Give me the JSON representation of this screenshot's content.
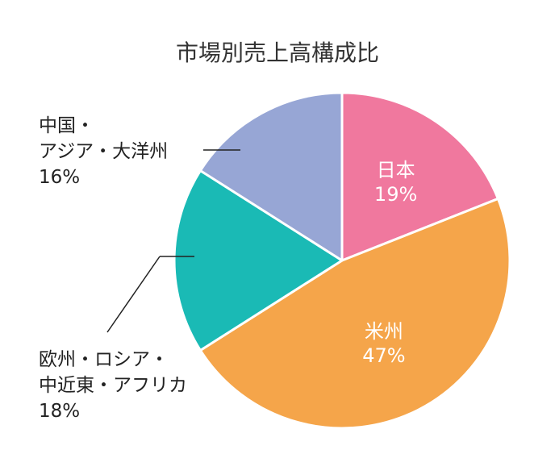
{
  "chart_data": {
    "type": "pie",
    "title": "市場別売上高構成比",
    "slices": [
      {
        "label": "日本",
        "value": 19,
        "value_label": "19%",
        "color": "#f0789e",
        "label_position": "inside"
      },
      {
        "label": "米州",
        "value": 47,
        "value_label": "47%",
        "color": "#f5a54a",
        "label_position": "inside"
      },
      {
        "label_lines": [
          "欧州・ロシア・",
          "中近東・アフリカ"
        ],
        "value": 18,
        "value_label": "18%",
        "color": "#1abab5",
        "label_position": "outside-left"
      },
      {
        "label_lines": [
          "中国・",
          "アジア・大洋州"
        ],
        "value": 16,
        "value_label": "16%",
        "color": "#97a6d5",
        "label_position": "outside-left"
      }
    ],
    "start": "12 o'clock",
    "direction": "clockwise",
    "slice_border_color": "#ffffff"
  }
}
